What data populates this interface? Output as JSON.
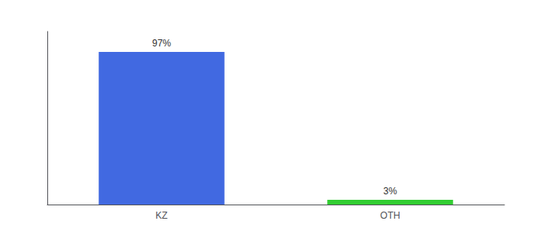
{
  "chart_data": {
    "type": "bar",
    "categories": [
      "KZ",
      "OTH"
    ],
    "values": [
      97,
      3
    ],
    "value_labels": [
      "97%",
      "3%"
    ],
    "data_labels": true,
    "colors": [
      "#4169e1",
      "#32cd32"
    ],
    "ylim": [
      0,
      110
    ],
    "tick_labels": "x",
    "grid": false
  }
}
